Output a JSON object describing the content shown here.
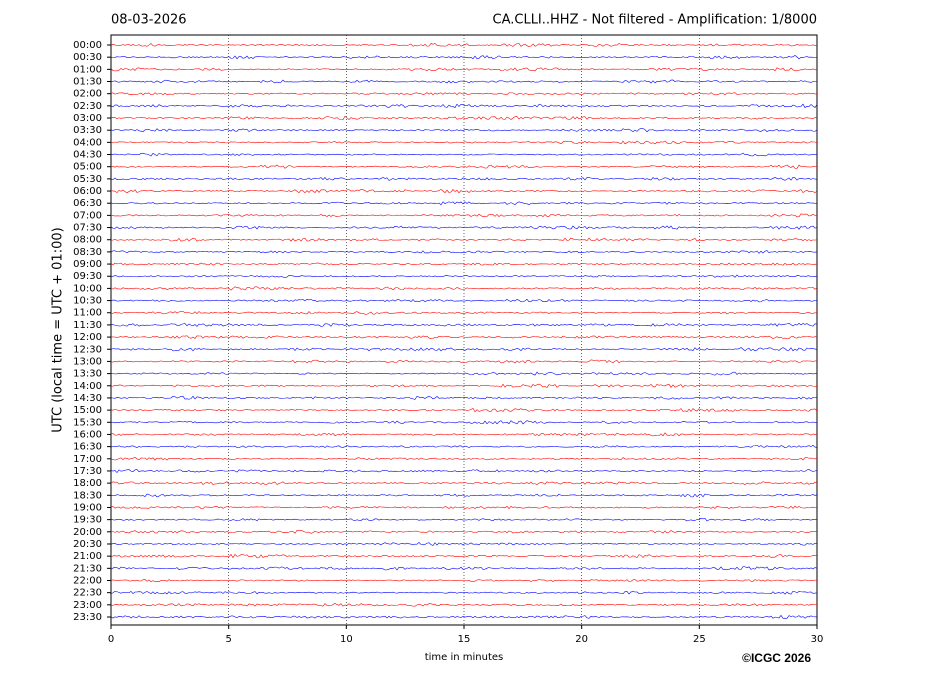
{
  "chart_data": {
    "type": "helicorder",
    "title": "08-03-2026",
    "subtitle": "CA.CLLI..HHZ - Not filtered - Amplification: 1/8000",
    "y_label": "UTC (local time = UTC + 01:00)",
    "x_label": "time in minutes",
    "credit": "©ICGC 2026",
    "categories": [
      "00:00",
      "00:30",
      "01:00",
      "01:30",
      "02:00",
      "02:30",
      "03:00",
      "03:30",
      "04:00",
      "04:30",
      "05:00",
      "05:30",
      "06:00",
      "06:30",
      "07:00",
      "07:30",
      "08:00",
      "08:30",
      "09:00",
      "09:30",
      "10:00",
      "10:30",
      "11:00",
      "11:30",
      "12:00",
      "12:30",
      "13:00",
      "13:30",
      "14:00",
      "14:30",
      "15:00",
      "15:30",
      "16:00",
      "16:30",
      "17:00",
      "17:30",
      "18:00",
      "18:30",
      "19:00",
      "19:30",
      "20:00",
      "20:30",
      "21:00",
      "21:30",
      "22:00",
      "22:30",
      "23:00",
      "23:30"
    ],
    "colors": [
      "#ff0000",
      "#0000ff"
    ],
    "xlim": [
      0,
      30
    ],
    "xticks": [
      0,
      5,
      10,
      15,
      20,
      25,
      30
    ],
    "grid": true
  }
}
